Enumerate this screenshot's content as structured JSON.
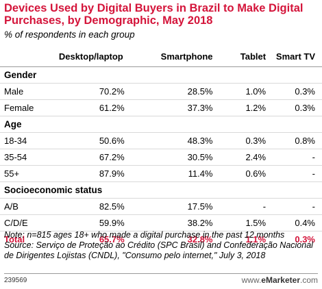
{
  "chart_data": {
    "type": "table",
    "title": "Devices Used by Digital Buyers in Brazil to Make Digital Purchases, by Demographic, May 2018",
    "subtitle": "% of respondents in each group",
    "columns": [
      "",
      "Desktop/laptop",
      "Smartphone",
      "Tablet",
      "Smart TV"
    ],
    "groups": [
      {
        "name": "Gender",
        "rows": [
          {
            "label": "Male",
            "values": [
              "70.2%",
              "28.5%",
              "1.0%",
              "0.3%"
            ]
          },
          {
            "label": "Female",
            "values": [
              "61.2%",
              "37.3%",
              "1.2%",
              "0.3%"
            ]
          }
        ]
      },
      {
        "name": "Age",
        "rows": [
          {
            "label": "18-34",
            "values": [
              "50.6%",
              "48.3%",
              "0.3%",
              "0.8%"
            ]
          },
          {
            "label": "35-54",
            "values": [
              "67.2%",
              "30.5%",
              "2.4%",
              "-"
            ]
          },
          {
            "label": "55+",
            "values": [
              "87.9%",
              "11.4%",
              "0.6%",
              "-"
            ]
          }
        ]
      },
      {
        "name": "Socioeconomic status",
        "rows": [
          {
            "label": "A/B",
            "values": [
              "82.5%",
              "17.5%",
              "-",
              "-"
            ]
          },
          {
            "label": "C/D/E",
            "values": [
              "59.9%",
              "38.2%",
              "1.5%",
              "0.4%"
            ]
          }
        ]
      }
    ],
    "total": {
      "label": "Total",
      "values": [
        "65.7%",
        "32.8%",
        "1.1%",
        "0.3%"
      ]
    }
  },
  "note": "Note: n=815 ages 18+ who made a digital purchase in the past 12 months",
  "source": "Source: Serviço de Proteção ao Crédito (SPC Brasil) and Confederação Nacional de Dirigentes Lojistas (CNDL), \"Consumo pelo internet,\" July 3, 2018",
  "chart_id": "239569",
  "brand": {
    "prefix": "www.",
    "name": "eMarketer",
    "suffix": ".com"
  },
  "colors": {
    "accent": "#d4143a"
  }
}
